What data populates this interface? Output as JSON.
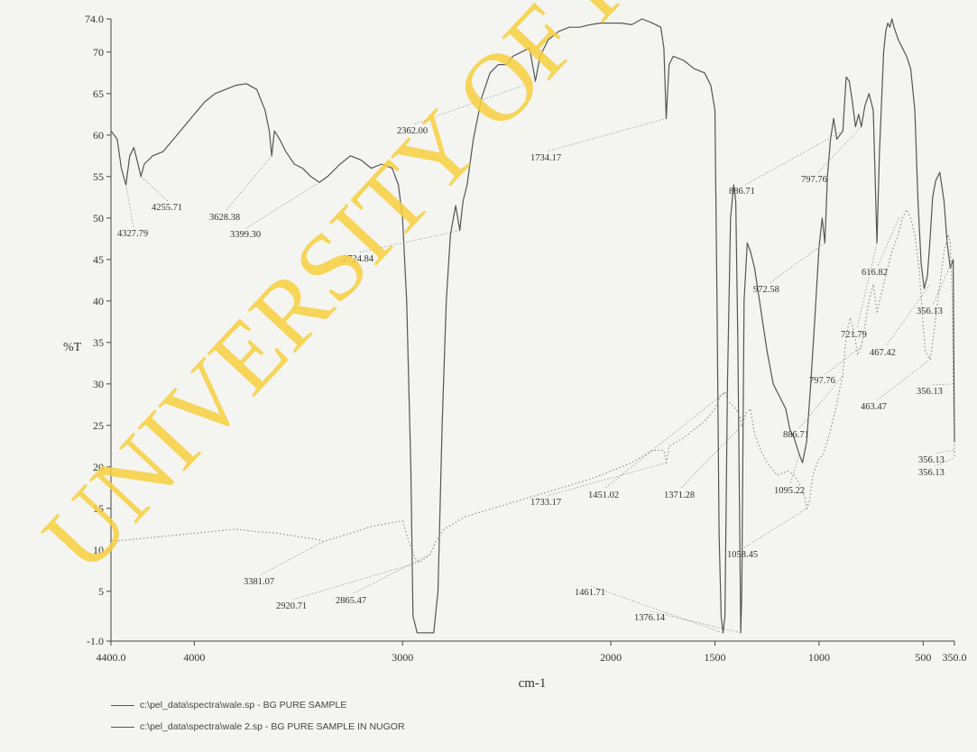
{
  "chart_data": {
    "type": "line",
    "title": "",
    "xlabel": "cm-1",
    "ylabel": "%T",
    "xlim": [
      4400.0,
      350.0
    ],
    "ylim": [
      -1.0,
      74.0
    ],
    "x_ticks": [
      {
        "value": 4400,
        "label": "4400.0"
      },
      {
        "value": 4000,
        "label": "4000"
      },
      {
        "value": 3000,
        "label": "3000"
      },
      {
        "value": 2000,
        "label": "2000"
      },
      {
        "value": 1500,
        "label": "1500"
      },
      {
        "value": 1000,
        "label": "1000"
      },
      {
        "value": 500,
        "label": "500"
      },
      {
        "value": 350,
        "label": "350.0"
      }
    ],
    "y_ticks": [
      {
        "value": 74,
        "label": "74.0"
      },
      {
        "value": 70,
        "label": "70"
      },
      {
        "value": 65,
        "label": "65"
      },
      {
        "value": 60,
        "label": "60"
      },
      {
        "value": 55,
        "label": "55"
      },
      {
        "value": 50,
        "label": "50"
      },
      {
        "value": 45,
        "label": "45"
      },
      {
        "value": 40,
        "label": "40"
      },
      {
        "value": 35,
        "label": "35"
      },
      {
        "value": 30,
        "label": "30"
      },
      {
        "value": 25,
        "label": "25"
      },
      {
        "value": 20,
        "label": "20"
      },
      {
        "value": 15,
        "label": "15"
      },
      {
        "value": 10,
        "label": "10"
      },
      {
        "value": 5,
        "label": "5"
      },
      {
        "value": -1,
        "label": "-1.0"
      }
    ],
    "series": [
      {
        "name": "c:\\pel_data\\spectra\\wale.sp - BG PURE SAMPLE",
        "style": "solid",
        "color": "#555555",
        "points": [
          [
            4400,
            60.5
          ],
          [
            4370,
            59.5
          ],
          [
            4350,
            56.0
          ],
          [
            4328,
            54.0
          ],
          [
            4310,
            57.5
          ],
          [
            4290,
            58.5
          ],
          [
            4270,
            56.5
          ],
          [
            4256,
            55.0
          ],
          [
            4240,
            56.5
          ],
          [
            4200,
            57.5
          ],
          [
            4150,
            58.0
          ],
          [
            4100,
            59.5
          ],
          [
            4050,
            61.0
          ],
          [
            4000,
            62.5
          ],
          [
            3950,
            64.0
          ],
          [
            3900,
            65.0
          ],
          [
            3850,
            65.5
          ],
          [
            3800,
            66.0
          ],
          [
            3750,
            66.2
          ],
          [
            3700,
            65.5
          ],
          [
            3660,
            63.0
          ],
          [
            3640,
            60.5
          ],
          [
            3628,
            57.5
          ],
          [
            3615,
            60.5
          ],
          [
            3590,
            59.5
          ],
          [
            3560,
            58.0
          ],
          [
            3520,
            56.5
          ],
          [
            3480,
            56.0
          ],
          [
            3440,
            55.0
          ],
          [
            3399,
            54.3
          ],
          [
            3360,
            55.0
          ],
          [
            3300,
            56.5
          ],
          [
            3250,
            57.5
          ],
          [
            3200,
            57.0
          ],
          [
            3150,
            56.0
          ],
          [
            3100,
            56.5
          ],
          [
            3050,
            56.0
          ],
          [
            3020,
            54.0
          ],
          [
            3000,
            50.0
          ],
          [
            2980,
            40.0
          ],
          [
            2960,
            20.0
          ],
          [
            2950,
            2.0
          ],
          [
            2930,
            0.0
          ],
          [
            2900,
            0.0
          ],
          [
            2865,
            0.0
          ],
          [
            2850,
            0.0
          ],
          [
            2830,
            5.0
          ],
          [
            2810,
            25.0
          ],
          [
            2790,
            40.0
          ],
          [
            2770,
            48.0
          ],
          [
            2745,
            51.5
          ],
          [
            2725,
            48.5
          ],
          [
            2710,
            52.0
          ],
          [
            2690,
            54.0
          ],
          [
            2660,
            59.5
          ],
          [
            2620,
            64.5
          ],
          [
            2580,
            67.5
          ],
          [
            2540,
            68.5
          ],
          [
            2500,
            68.5
          ],
          [
            2470,
            69.5
          ],
          [
            2430,
            70.0
          ],
          [
            2390,
            70.5
          ],
          [
            2362,
            66.5
          ],
          [
            2340,
            69.5
          ],
          [
            2300,
            71.5
          ],
          [
            2250,
            72.5
          ],
          [
            2200,
            73.0
          ],
          [
            2150,
            73.0
          ],
          [
            2100,
            73.3
          ],
          [
            2050,
            73.5
          ],
          [
            2000,
            73.5
          ],
          [
            1950,
            73.5
          ],
          [
            1900,
            73.3
          ],
          [
            1850,
            74.0
          ],
          [
            1800,
            73.5
          ],
          [
            1760,
            73.0
          ],
          [
            1745,
            70.5
          ],
          [
            1734,
            62.0
          ],
          [
            1720,
            68.5
          ],
          [
            1700,
            69.5
          ],
          [
            1650,
            69.0
          ],
          [
            1600,
            68.0
          ],
          [
            1550,
            67.5
          ],
          [
            1520,
            66.0
          ],
          [
            1500,
            63.0
          ],
          [
            1490,
            40.0
          ],
          [
            1480,
            12.0
          ],
          [
            1470,
            2.0
          ],
          [
            1461,
            0.0
          ],
          [
            1452,
            2.0
          ],
          [
            1440,
            30.0
          ],
          [
            1425,
            50.0
          ],
          [
            1410,
            54.0
          ],
          [
            1400,
            52.0
          ],
          [
            1390,
            35.0
          ],
          [
            1380,
            10.0
          ],
          [
            1376,
            0.0
          ],
          [
            1371,
            5.0
          ],
          [
            1360,
            40.0
          ],
          [
            1345,
            47.0
          ],
          [
            1330,
            46.0
          ],
          [
            1310,
            44.0
          ],
          [
            1280,
            39.0
          ],
          [
            1250,
            34.0
          ],
          [
            1220,
            30.0
          ],
          [
            1190,
            28.5
          ],
          [
            1160,
            27.0
          ],
          [
            1140,
            24.5
          ],
          [
            1120,
            23.5
          ],
          [
            1095,
            21.5
          ],
          [
            1080,
            20.5
          ],
          [
            1060,
            23.0
          ],
          [
            1040,
            30.0
          ],
          [
            1020,
            38.0
          ],
          [
            1000,
            46.5
          ],
          [
            985,
            50.0
          ],
          [
            972,
            47.0
          ],
          [
            960,
            55.0
          ],
          [
            945,
            59.5
          ],
          [
            930,
            62.0
          ],
          [
            915,
            59.5
          ],
          [
            900,
            60.0
          ],
          [
            886,
            60.5
          ],
          [
            870,
            67.0
          ],
          [
            855,
            66.5
          ],
          [
            840,
            64.0
          ],
          [
            825,
            61.0
          ],
          [
            810,
            62.5
          ],
          [
            797,
            61.0
          ],
          [
            780,
            63.5
          ],
          [
            760,
            65.0
          ],
          [
            740,
            63.0
          ],
          [
            722,
            47.0
          ],
          [
            710,
            58.0
          ],
          [
            700,
            64.0
          ],
          [
            690,
            70.0
          ],
          [
            680,
            72.5
          ],
          [
            670,
            73.5
          ],
          [
            660,
            73.0
          ],
          [
            650,
            74.0
          ],
          [
            640,
            73.0
          ],
          [
            620,
            71.5
          ],
          [
            600,
            70.5
          ],
          [
            580,
            69.5
          ],
          [
            560,
            68.0
          ],
          [
            540,
            63.0
          ],
          [
            525,
            52.0
          ],
          [
            510,
            44.5
          ],
          [
            495,
            41.5
          ],
          [
            480,
            43.0
          ],
          [
            467,
            47.5
          ],
          [
            455,
            52.5
          ],
          [
            440,
            54.5
          ],
          [
            420,
            55.5
          ],
          [
            400,
            52.0
          ],
          [
            385,
            47.0
          ],
          [
            370,
            44.0
          ],
          [
            356,
            45.0
          ],
          [
            350,
            23.0
          ]
        ]
      },
      {
        "name": "c:\\pel_data\\spectra\\wale 2.sp - BG PURE SAMPLE IN NUGOR",
        "style": "dotted",
        "color": "#888888",
        "points": [
          [
            4400,
            11.0
          ],
          [
            4200,
            11.5
          ],
          [
            4000,
            12.0
          ],
          [
            3800,
            12.5
          ],
          [
            3700,
            12.2
          ],
          [
            3600,
            12.0
          ],
          [
            3500,
            11.6
          ],
          [
            3400,
            11.2
          ],
          [
            3381,
            11.0
          ],
          [
            3340,
            11.3
          ],
          [
            3250,
            12.0
          ],
          [
            3150,
            12.8
          ],
          [
            3050,
            13.3
          ],
          [
            3000,
            13.5
          ],
          [
            2970,
            11.0
          ],
          [
            2940,
            9.0
          ],
          [
            2920,
            8.5
          ],
          [
            2890,
            9.0
          ],
          [
            2865,
            9.5
          ],
          [
            2840,
            11.0
          ],
          [
            2800,
            12.5
          ],
          [
            2700,
            14.0
          ],
          [
            2500,
            15.5
          ],
          [
            2300,
            17.0
          ],
          [
            2100,
            18.5
          ],
          [
            1900,
            20.5
          ],
          [
            1800,
            22.0
          ],
          [
            1745,
            22.0
          ],
          [
            1733,
            20.5
          ],
          [
            1720,
            22.5
          ],
          [
            1650,
            23.5
          ],
          [
            1600,
            24.5
          ],
          [
            1550,
            25.5
          ],
          [
            1500,
            27.0
          ],
          [
            1475,
            28.5
          ],
          [
            1451,
            29.0
          ],
          [
            1440,
            28.0
          ],
          [
            1420,
            27.5
          ],
          [
            1400,
            27.0
          ],
          [
            1380,
            26.0
          ],
          [
            1371,
            25.0
          ],
          [
            1350,
            26.5
          ],
          [
            1330,
            27.0
          ],
          [
            1310,
            24.0
          ],
          [
            1280,
            22.0
          ],
          [
            1250,
            20.5
          ],
          [
            1200,
            19.0
          ],
          [
            1150,
            19.5
          ],
          [
            1120,
            19.0
          ],
          [
            1095,
            18.0
          ],
          [
            1070,
            16.5
          ],
          [
            1058,
            15.0
          ],
          [
            1045,
            16.0
          ],
          [
            1030,
            19.0
          ],
          [
            1000,
            21.0
          ],
          [
            980,
            21.5
          ],
          [
            950,
            24.0
          ],
          [
            920,
            27.0
          ],
          [
            900,
            29.5
          ],
          [
            886,
            31.0
          ],
          [
            870,
            36.0
          ],
          [
            850,
            38.0
          ],
          [
            830,
            36.0
          ],
          [
            815,
            33.5
          ],
          [
            797,
            34.5
          ],
          [
            780,
            37.0
          ],
          [
            760,
            40.0
          ],
          [
            740,
            42.0
          ],
          [
            721,
            38.5
          ],
          [
            710,
            40.0
          ],
          [
            690,
            42.0
          ],
          [
            670,
            44.0
          ],
          [
            650,
            46.0
          ],
          [
            620,
            48.0
          ],
          [
            600,
            50.0
          ],
          [
            580,
            51.0
          ],
          [
            560,
            50.0
          ],
          [
            540,
            48.0
          ],
          [
            520,
            44.0
          ],
          [
            500,
            37.0
          ],
          [
            490,
            34.0
          ],
          [
            480,
            33.5
          ],
          [
            467,
            33.0
          ],
          [
            460,
            34.0
          ],
          [
            440,
            38.0
          ],
          [
            420,
            42.0
          ],
          [
            400,
            46.0
          ],
          [
            380,
            48.0
          ],
          [
            370,
            47.0
          ],
          [
            360,
            40.0
          ],
          [
            356,
            30.0
          ],
          [
            350,
            21.0
          ]
        ]
      }
    ],
    "annotations": [
      {
        "label": "4327.79",
        "x": 4327.79,
        "y": 54.0
      },
      {
        "label": "4255.71",
        "x": 4255.71,
        "y": 55.0
      },
      {
        "label": "3628.38",
        "x": 3628.38,
        "y": 57.5
      },
      {
        "label": "3399.30",
        "x": 3399.3,
        "y": 54.3
      },
      {
        "label": "2724.84",
        "x": 2724.84,
        "y": 48.5
      },
      {
        "label": "2362.00",
        "x": 2362.0,
        "y": 66.5
      },
      {
        "label": "1734.17",
        "x": 1734.17,
        "y": 62.0
      },
      {
        "label": "886.71",
        "x": 886.71,
        "y": 60.5
      },
      {
        "label": "797.76",
        "x": 797.76,
        "y": 61.0
      },
      {
        "label": "616.82",
        "x": 616.82,
        "y": 50.0
      },
      {
        "label": "972.58",
        "x": 972.58,
        "y": 47.0
      },
      {
        "label": "721.79",
        "x": 721.79,
        "y": 47.0
      },
      {
        "label": "356.13",
        "x": 356.13,
        "y": 45.0
      },
      {
        "label": "467.42",
        "x": 467.42,
        "y": 42.0
      },
      {
        "label": "797.76",
        "x": 797.76,
        "y": 34.5
      },
      {
        "label": "356.13",
        "x": 356.13,
        "y": 30.0
      },
      {
        "label": "463.47",
        "x": 463.47,
        "y": 33.0
      },
      {
        "label": "886.71",
        "x": 886.71,
        "y": 31.0
      },
      {
        "label": "356.13",
        "x": 356.13,
        "y": 22.0
      },
      {
        "label": "356.13",
        "x": 356.13,
        "y": 21.0
      },
      {
        "label": "1095.22",
        "x": 1095.22,
        "y": 21.5
      },
      {
        "label": "1733.17",
        "x": 1733.17,
        "y": 20.5
      },
      {
        "label": "1451.02",
        "x": 1451.02,
        "y": 29.0
      },
      {
        "label": "1371.28",
        "x": 1371.28,
        "y": 25.0
      },
      {
        "label": "1058.45",
        "x": 1058.45,
        "y": 15.0
      },
      {
        "label": "3381.07",
        "x": 3381.07,
        "y": 11.0
      },
      {
        "label": "2920.71",
        "x": 2920.71,
        "y": 8.5
      },
      {
        "label": "2865.47",
        "x": 2865.47,
        "y": 9.5
      },
      {
        "label": "1461.71",
        "x": 1461.71,
        "y": 0.0
      },
      {
        "label": "1376.14",
        "x": 1376.14,
        "y": 0.0
      }
    ],
    "watermark": "UNIVERSITY OF IB",
    "watermark_color": "#f6cf3e",
    "grid": false,
    "legend_position": "bottom-left"
  }
}
